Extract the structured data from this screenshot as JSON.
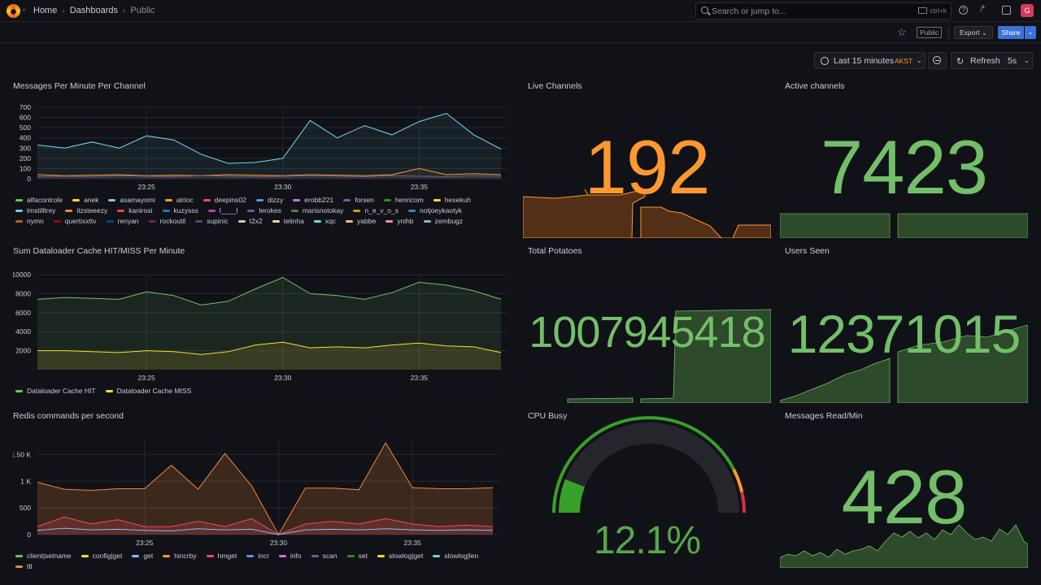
{
  "nav": {
    "breadcrumbs": [
      "Home",
      "Dashboards",
      "Public"
    ],
    "search_placeholder": "Search or jump to...",
    "search_shortcut": "ctrl+k",
    "avatar_initial": "G"
  },
  "toolbar": {
    "public_badge": "Public",
    "export_label": "Export",
    "share_label": "Share",
    "time_range": "Last 15 minutes",
    "timezone": "AKST",
    "refresh_label": "Refresh",
    "refresh_interval": "5s"
  },
  "colors": {
    "green": "#73bf69",
    "orange": "#ff9830",
    "yellow": "#fade2a",
    "blue": "#8ab8ff",
    "red": "#f2495c",
    "purple": "#b877d9"
  },
  "panels": {
    "messages": {
      "title": "Messages Per Minute Per Channel",
      "legend": [
        {
          "name": "alfacontrole",
          "color": "#73bf69"
        },
        {
          "name": "anek",
          "color": "#fade2a"
        },
        {
          "name": "asamayomi",
          "color": "#8ab8ff"
        },
        {
          "name": "atrioc",
          "color": "#ff9830"
        },
        {
          "name": "deepins02",
          "color": "#f2495c"
        },
        {
          "name": "dizzy",
          "color": "#5794f2"
        },
        {
          "name": "erobb221",
          "color": "#b877d9"
        },
        {
          "name": "forsen",
          "color": "#705da0"
        },
        {
          "name": "henricom",
          "color": "#37872d"
        },
        {
          "name": "hexekuh",
          "color": "#fade2a"
        },
        {
          "name": "imstilltrey",
          "color": "#6ed0e0"
        },
        {
          "name": "itzsteeezy",
          "color": "#ef843c"
        },
        {
          "name": "kanirosi",
          "color": "#e24d42"
        },
        {
          "name": "kuzysss",
          "color": "#1f78c1"
        },
        {
          "name": "l____l",
          "color": "#ba43a9"
        },
        {
          "name": "lerokes",
          "color": "#705da0"
        },
        {
          "name": "marisnotokay",
          "color": "#508642"
        },
        {
          "name": "n_e_v_o_s",
          "color": "#cca300"
        },
        {
          "name": "notjoeykaotyk",
          "color": "#447ebc"
        },
        {
          "name": "nymn",
          "color": "#c15c17"
        },
        {
          "name": "quertixxttv",
          "color": "#890f02"
        },
        {
          "name": "renyan",
          "color": "#0a437c"
        },
        {
          "name": "rockoutil",
          "color": "#6d1f62"
        },
        {
          "name": "supinic",
          "color": "#584477"
        },
        {
          "name": "t2x2",
          "color": "#b7dbab"
        },
        {
          "name": "telinha",
          "color": "#f4d598"
        },
        {
          "name": "xqc",
          "color": "#70dbed"
        },
        {
          "name": "yabbe",
          "color": "#f9ba8f"
        },
        {
          "name": "ynihb",
          "color": "#f29191"
        },
        {
          "name": "zembugz",
          "color": "#82b5d8"
        }
      ]
    },
    "dataloader": {
      "title": "Sum Dataloader Cache HIT/MISS Per Minute",
      "legend": [
        {
          "name": "Dataloader Cache HIT",
          "color": "#73bf69"
        },
        {
          "name": "Dataloader Cache MISS",
          "color": "#fade2a"
        }
      ]
    },
    "redis": {
      "title": "Redis commands per second",
      "legend": [
        {
          "name": "client|setname",
          "color": "#73bf69"
        },
        {
          "name": "config|get",
          "color": "#fade2a"
        },
        {
          "name": "get",
          "color": "#8ab8ff"
        },
        {
          "name": "hincrby",
          "color": "#ff9830"
        },
        {
          "name": "hmget",
          "color": "#f2495c"
        },
        {
          "name": "incr",
          "color": "#5794f2"
        },
        {
          "name": "info",
          "color": "#b877d9"
        },
        {
          "name": "scan",
          "color": "#705da0"
        },
        {
          "name": "set",
          "color": "#37872d"
        },
        {
          "name": "slowlog|get",
          "color": "#fade2a"
        },
        {
          "name": "slowlog|len",
          "color": "#6ed0e0"
        },
        {
          "name": "ttl",
          "color": "#ef843c"
        }
      ]
    },
    "live_channels": {
      "title": "Live Channels",
      "value": "192"
    },
    "active_channels": {
      "title": "Active channels",
      "value": "7423"
    },
    "total_potatoes": {
      "title": "Total Potatoes",
      "value": "1007945418"
    },
    "users_seen": {
      "title": "Users Seen",
      "value": "12371015"
    },
    "cpu_busy": {
      "title": "CPU Busy",
      "value": "12.1%",
      "fraction": 0.121
    },
    "messages_read": {
      "title": "Messages Read/Min",
      "value": "428"
    }
  },
  "chart_data": [
    {
      "type": "line",
      "title": "Messages Per Minute Per Channel",
      "x_ticks": [
        "23:25",
        "23:30",
        "23:35"
      ],
      "ylim": [
        0,
        700
      ],
      "y_ticks": [
        0,
        100,
        200,
        300,
        400,
        500,
        600,
        700
      ],
      "x": [
        "23:21",
        "23:22",
        "23:23",
        "23:24",
        "23:25",
        "23:26",
        "23:27",
        "23:28",
        "23:29",
        "23:30",
        "23:31",
        "23:32",
        "23:33",
        "23:34",
        "23:35",
        "23:36",
        "23:37",
        "23:38"
      ],
      "series": [
        {
          "name": "xqc",
          "values": [
            330,
            300,
            360,
            300,
            420,
            380,
            240,
            150,
            160,
            200,
            570,
            400,
            520,
            430,
            560,
            640,
            430,
            290
          ]
        },
        {
          "name": "atrioc",
          "values": [
            40,
            30,
            35,
            40,
            30,
            35,
            30,
            40,
            35,
            30,
            40,
            35,
            30,
            40,
            100,
            40,
            50,
            40
          ]
        },
        {
          "name": "forsen",
          "values": [
            20,
            25,
            20,
            30,
            25,
            20,
            30,
            25,
            20,
            25,
            30,
            25,
            20,
            30,
            25,
            20,
            30,
            25
          ]
        }
      ]
    },
    {
      "type": "line",
      "title": "Sum Dataloader Cache HIT/MISS Per Minute",
      "x_ticks": [
        "23:25",
        "23:30",
        "23:35"
      ],
      "ylim": [
        0,
        10000
      ],
      "y_ticks": [
        2000,
        4000,
        6000,
        8000,
        10000
      ],
      "x": [
        "23:21",
        "23:22",
        "23:23",
        "23:24",
        "23:25",
        "23:26",
        "23:27",
        "23:28",
        "23:29",
        "23:30",
        "23:31",
        "23:32",
        "23:33",
        "23:34",
        "23:35",
        "23:36",
        "23:37",
        "23:38"
      ],
      "series": [
        {
          "name": "Dataloader Cache HIT",
          "values": [
            7400,
            7600,
            7500,
            7400,
            8200,
            7800,
            6800,
            7200,
            8500,
            9700,
            8000,
            7800,
            7400,
            8100,
            9200,
            8900,
            8300,
            7400
          ]
        },
        {
          "name": "Dataloader Cache MISS",
          "values": [
            2000,
            2000,
            1900,
            1800,
            2000,
            1900,
            1600,
            1900,
            2600,
            2900,
            2300,
            2400,
            2300,
            2600,
            2800,
            2500,
            2400,
            1800
          ]
        }
      ]
    },
    {
      "type": "line",
      "title": "Redis commands per second",
      "x_ticks": [
        "23:25",
        "23:30",
        "23:35"
      ],
      "ylim": [
        0,
        1750
      ],
      "y_ticks": [
        0,
        500,
        1000,
        1500
      ],
      "y_tick_labels": [
        "0",
        "500",
        "1 K",
        "1.50 K"
      ],
      "x": [
        "23:21",
        "23:22",
        "23:23",
        "23:24",
        "23:25",
        "23:26",
        "23:27",
        "23:28",
        "23:29",
        "23:30",
        "23:31",
        "23:32",
        "23:33",
        "23:34",
        "23:35",
        "23:36",
        "23:37",
        "23:38"
      ],
      "series": [
        {
          "name": "ttl",
          "values": [
            980,
            850,
            830,
            860,
            860,
            1300,
            850,
            1520,
            910,
            0,
            870,
            870,
            840,
            1720,
            880,
            860,
            860,
            880
          ]
        },
        {
          "name": "hmget",
          "values": [
            150,
            330,
            200,
            280,
            150,
            150,
            250,
            150,
            300,
            0,
            200,
            250,
            200,
            300,
            200,
            150,
            180,
            150
          ]
        },
        {
          "name": "get",
          "values": [
            80,
            120,
            90,
            100,
            80,
            70,
            110,
            90,
            100,
            0,
            90,
            100,
            90,
            110,
            90,
            80,
            90,
            80
          ]
        }
      ]
    }
  ]
}
